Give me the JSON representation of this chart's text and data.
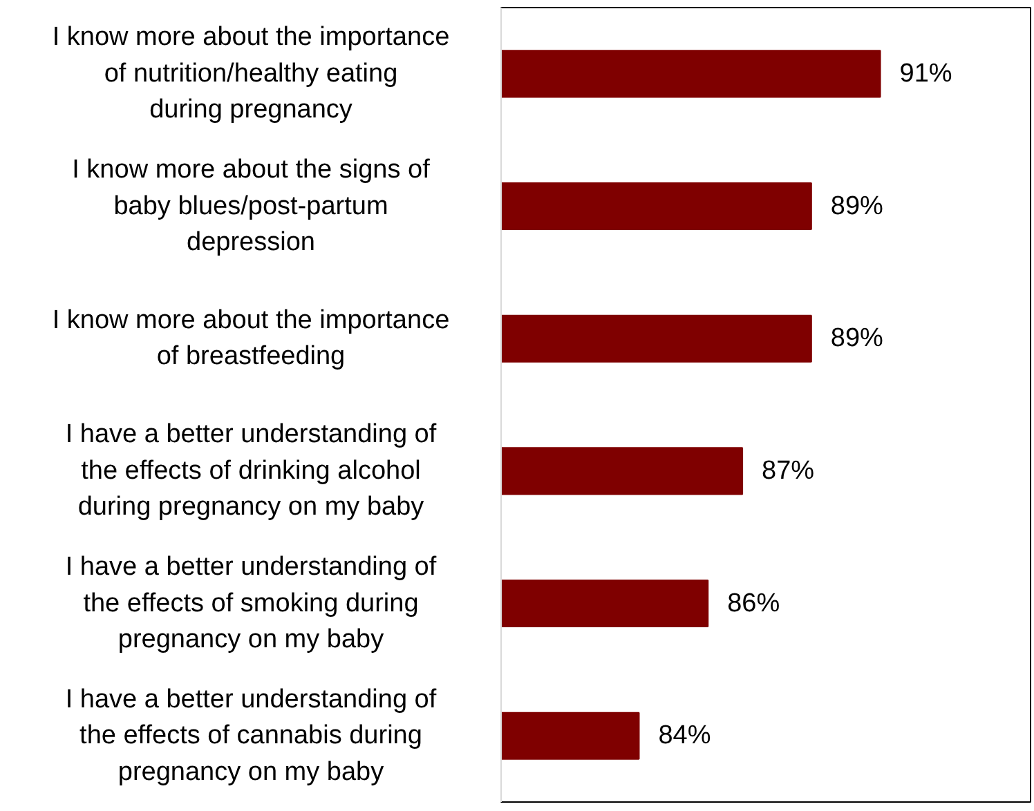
{
  "chart_data": {
    "type": "bar",
    "orientation": "horizontal",
    "categories": [
      "I know more about the importance of nutrition/healthy eating during pregnancy",
      "I know more about the signs of baby blues/post-partum depression",
      "I know more about the importance of breastfeeding",
      "I have a better understanding of the effects of drinking alcohol during pregnancy on my baby",
      "I have a better understanding of the effects of smoking during pregnancy on my baby",
      "I have a better understanding of the effects of cannabis during pregnancy on my baby"
    ],
    "values": [
      91,
      89,
      89,
      87,
      86,
      84
    ],
    "value_labels": [
      "91%",
      "89%",
      "89%",
      "87%",
      "86%",
      "84%"
    ],
    "color": "#7f0000",
    "xlim": [
      80,
      95.4
    ],
    "grid": false
  }
}
